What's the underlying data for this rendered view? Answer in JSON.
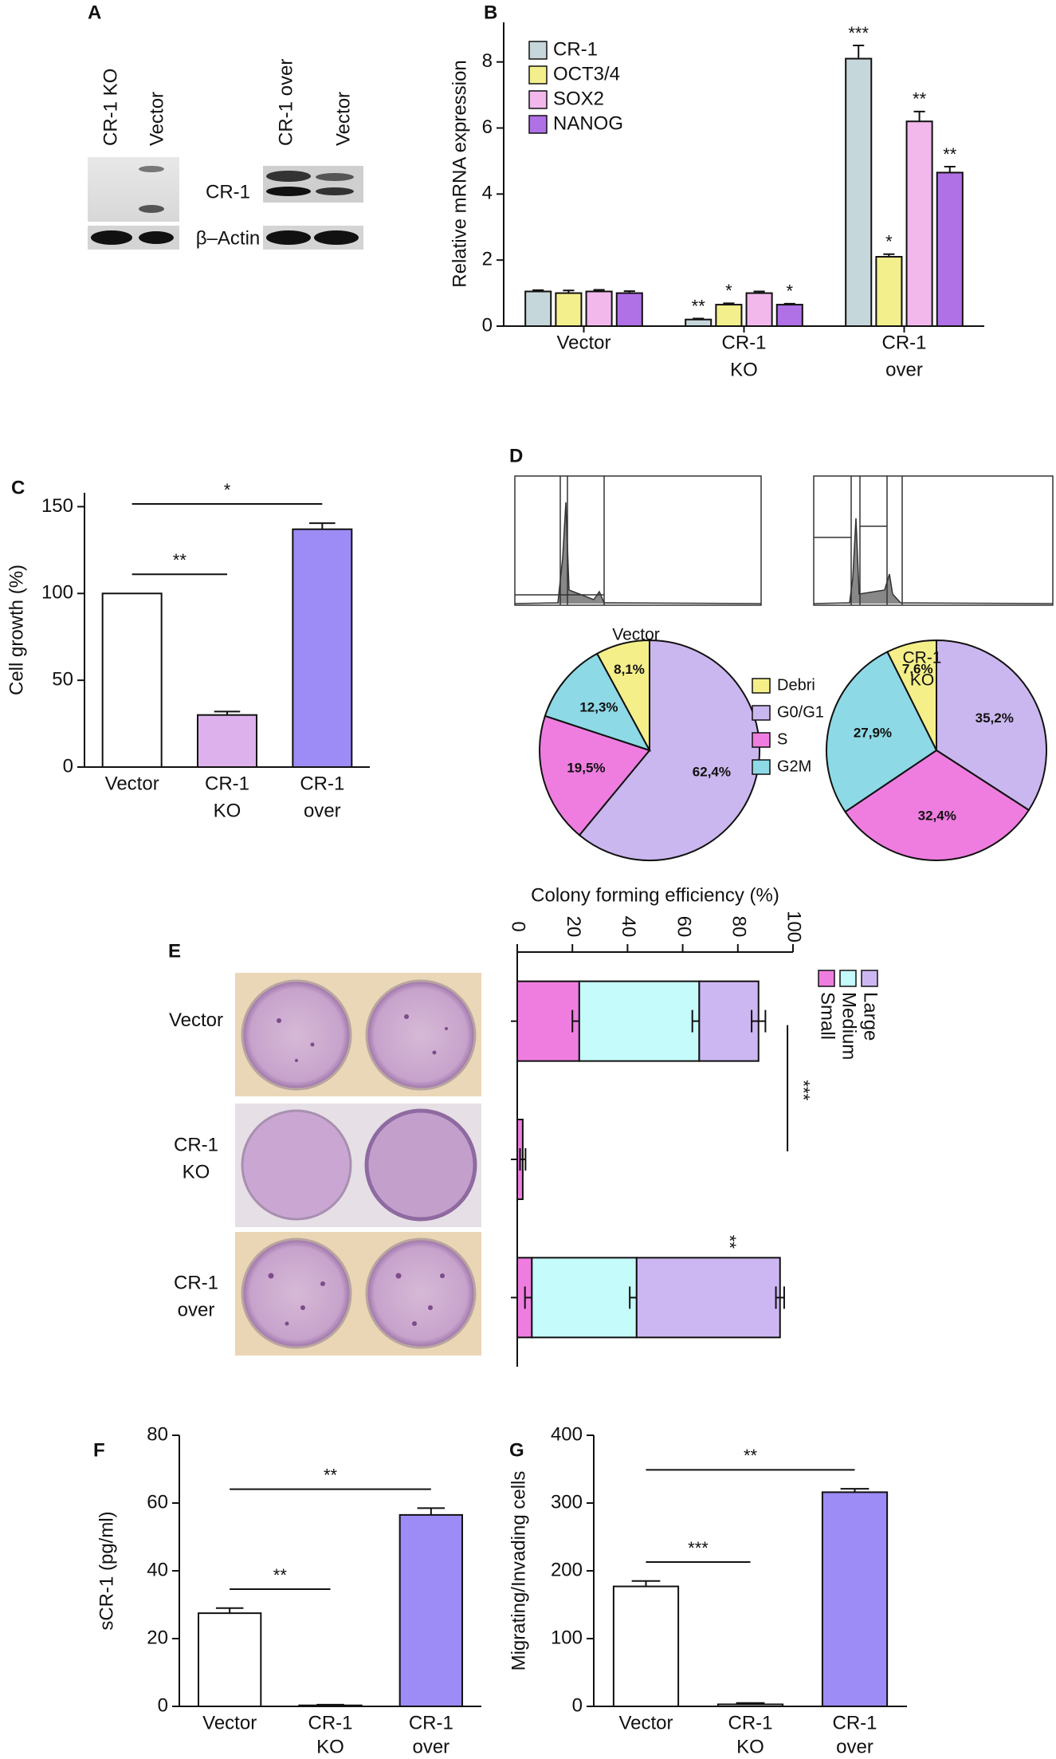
{
  "panel_letters": [
    "A",
    "B",
    "C",
    "D",
    "E",
    "F",
    "G"
  ],
  "blot": {
    "lanes": [
      "CR-1 KO",
      "Vector",
      "CR-1 over",
      "Vector"
    ],
    "bands": [
      "CR-1",
      "β–Actin"
    ]
  },
  "chart_data": [
    {
      "type": "bar",
      "y_label": "Relative mRNA expression",
      "categories": [
        [
          "Vector"
        ],
        [
          "CR-1",
          "KO"
        ],
        [
          "CR-1",
          "over"
        ]
      ],
      "ylim": [
        0,
        9.2
      ],
      "yticks": [
        0,
        2,
        4,
        6,
        8
      ],
      "legend": "upper left",
      "series": [
        {
          "name": "CR-1",
          "color": "#c6d7db",
          "values": [
            1.05,
            0.2,
            8.1
          ],
          "errors": [
            0.04,
            0.03,
            0.4
          ],
          "annotations": [
            null,
            "**",
            "***"
          ]
        },
        {
          "name": "OCT3/4",
          "color": "#f3ef8c",
          "values": [
            1.0,
            0.65,
            2.1
          ],
          "errors": [
            0.08,
            0.04,
            0.08
          ],
          "annotations": [
            null,
            "*",
            "*"
          ]
        },
        {
          "name": "SOX2",
          "color": "#f2b8ec",
          "values": [
            1.05,
            1.0,
            6.2
          ],
          "errors": [
            0.05,
            0.05,
            0.3
          ],
          "annotations": [
            null,
            null,
            "**"
          ]
        },
        {
          "name": "NANOG",
          "color": "#b070e6",
          "values": [
            1.0,
            0.65,
            4.65
          ],
          "errors": [
            0.06,
            0.03,
            0.18
          ],
          "annotations": [
            null,
            "*",
            "**"
          ]
        }
      ]
    },
    {
      "type": "bar",
      "y_label": "Cell growth (%)",
      "categories": [
        [
          "Vector"
        ],
        [
          "CR-1",
          "KO"
        ],
        [
          "CR-1",
          "over"
        ]
      ],
      "values": [
        100,
        30,
        137
      ],
      "errors": [
        null,
        2,
        3.5
      ],
      "colors": [
        "#ffffff",
        "#ddb2ec",
        "#9d8bf6"
      ],
      "ylim": [
        0,
        158
      ],
      "yticks": [
        0,
        50,
        100,
        150
      ],
      "comparisons": [
        {
          "from": 0,
          "to": 1,
          "label": "**"
        },
        {
          "from": 0,
          "to": 2,
          "label": "*"
        }
      ]
    },
    {
      "type": "pie",
      "title": [
        "Vector"
      ],
      "categories": [
        "Debri",
        "G0/G1",
        "S",
        "G2M"
      ],
      "colors": [
        "#f5ef8a",
        "#cbb7ef",
        "#ef7de0",
        "#8ed9e6"
      ],
      "values": [
        8.1,
        62.4,
        19.5,
        12.3
      ],
      "value_labels": [
        "8,1%",
        "62,4%",
        "19,5%",
        "12,3%"
      ],
      "legend": true
    },
    {
      "type": "pie",
      "title": [
        "CR-1",
        "KO"
      ],
      "colors": [
        "#f5ef8a",
        "#cbb7ef",
        "#ef7de0",
        "#8ed9e6"
      ],
      "values": [
        7.6,
        35.2,
        32.4,
        27.9
      ],
      "value_labels": [
        "7,6%",
        "35,2%",
        "32,4%",
        "27,9%"
      ]
    },
    {
      "type": "bar",
      "orientation": "horizontal",
      "stacked": true,
      "x_label": "Colony forming efficiency (%)",
      "categories": [
        [
          "Vector"
        ],
        [
          "CR-1",
          "KO"
        ],
        [
          "CR-1",
          "over"
        ]
      ],
      "xlim": [
        0,
        100
      ],
      "xticks": [
        0,
        20,
        40,
        60,
        80,
        100
      ],
      "legend": "right",
      "series": [
        {
          "name": "Small",
          "color": "#ef7de0",
          "values": [
            22.5,
            2,
            5.3
          ],
          "errors": [
            2.5,
            1,
            2.5
          ]
        },
        {
          "name": "Medium",
          "color": "#c6fbfb",
          "values": [
            43.5,
            0,
            38
          ],
          "errors": [
            2.5,
            null,
            2.5
          ]
        },
        {
          "name": "Large",
          "color": "#cdb7f2",
          "values": [
            21.5,
            0,
            52
          ],
          "errors": [
            2.5,
            null,
            1.5
          ],
          "annotations": [
            null,
            null,
            "**"
          ]
        }
      ],
      "comparisons": [
        {
          "from": 0,
          "to": 1,
          "label": "***"
        }
      ]
    },
    {
      "type": "bar",
      "y_label": "sCR-1 (pg/ml)",
      "categories": [
        [
          "Vector"
        ],
        [
          "CR-1",
          "KO"
        ],
        [
          "CR-1",
          "over"
        ]
      ],
      "values": [
        27.5,
        0.3,
        56.5
      ],
      "errors": [
        1.5,
        0.2,
        2
      ],
      "colors": [
        "#ffffff",
        "#ffffff",
        "#9d8bf6"
      ],
      "ylim": [
        0,
        80
      ],
      "yticks": [
        0,
        20,
        40,
        60,
        80
      ],
      "comparisons": [
        {
          "from": 0,
          "to": 1,
          "label": "**"
        },
        {
          "from": 0,
          "to": 2,
          "label": "**"
        }
      ]
    },
    {
      "type": "bar",
      "y_label": "Migrating/Invading cells",
      "categories": [
        [
          "Vector"
        ],
        [
          "CR-1",
          "KO"
        ],
        [
          "CR-1",
          "over"
        ]
      ],
      "values": [
        177,
        3,
        316
      ],
      "errors": [
        8,
        2,
        5
      ],
      "colors": [
        "#ffffff",
        "#ffffff",
        "#9d8bf6"
      ],
      "ylim": [
        0,
        400
      ],
      "yticks": [
        0,
        100,
        200,
        300,
        400
      ],
      "comparisons": [
        {
          "from": 0,
          "to": 1,
          "label": "***"
        },
        {
          "from": 0,
          "to": 2,
          "label": "**"
        }
      ]
    }
  ]
}
